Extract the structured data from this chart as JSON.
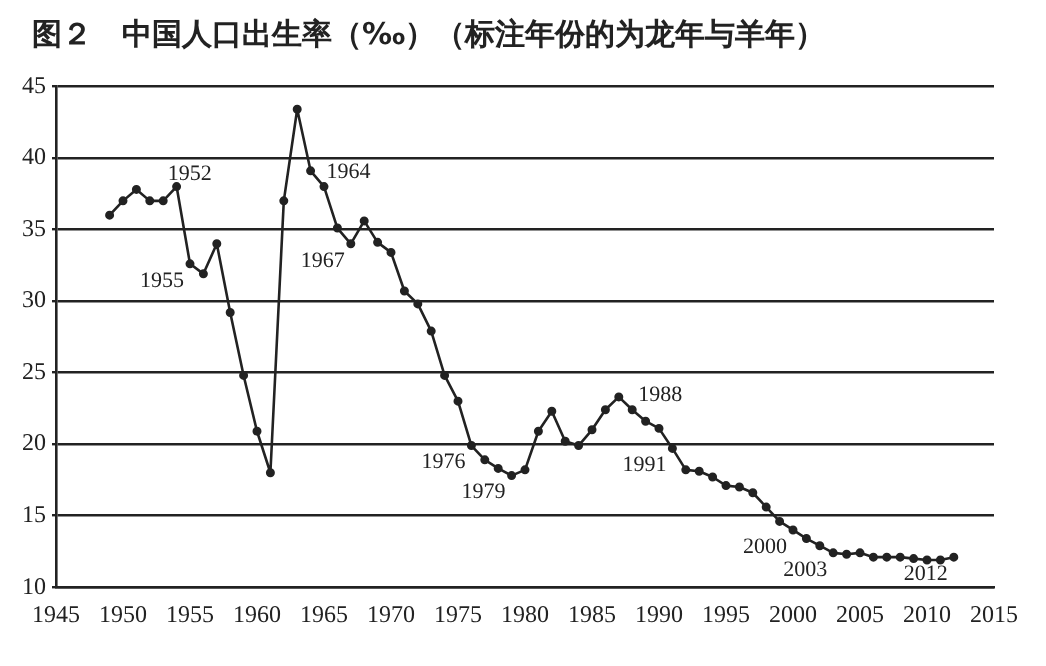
{
  "chart_data": {
    "type": "line",
    "title": "图２　中国人口出生率（‰）（标注年份的为龙年与羊年）",
    "x": [
      1949,
      1950,
      1951,
      1952,
      1953,
      1954,
      1955,
      1956,
      1957,
      1958,
      1959,
      1960,
      1961,
      1962,
      1963,
      1964,
      1965,
      1966,
      1967,
      1968,
      1969,
      1970,
      1971,
      1972,
      1973,
      1974,
      1975,
      1976,
      1977,
      1978,
      1979,
      1980,
      1981,
      1982,
      1983,
      1984,
      1985,
      1986,
      1987,
      1988,
      1989,
      1990,
      1991,
      1992,
      1993,
      1994,
      1995,
      1996,
      1997,
      1998,
      1999,
      2000,
      2001,
      2002,
      2003,
      2004,
      2005,
      2006,
      2007,
      2008,
      2009,
      2010,
      2011,
      2012
    ],
    "series": [
      {
        "color": "#222222",
        "values": [
          36,
          37,
          37.8,
          37,
          37,
          38,
          32.6,
          31.9,
          34,
          29.2,
          24.8,
          20.9,
          18,
          37,
          43.4,
          39.1,
          38,
          35.1,
          34,
          35.6,
          34.1,
          33.4,
          30.7,
          29.8,
          27.9,
          24.8,
          23,
          19.9,
          18.9,
          18.3,
          17.8,
          18.2,
          20.9,
          22.3,
          20.2,
          19.9,
          21,
          22.4,
          23.3,
          22.4,
          21.6,
          21.1,
          19.7,
          18.2,
          18.1,
          17.7,
          17.1,
          17,
          16.6,
          15.6,
          14.6,
          14,
          13.4,
          12.9,
          12.4,
          12.3,
          12.4,
          12.1,
          12.1,
          12.1,
          12,
          11.9,
          11.9,
          12.1
        ]
      }
    ],
    "xlim": [
      1945,
      2015
    ],
    "xticks": [
      1945,
      1950,
      1955,
      1960,
      1965,
      1970,
      1975,
      1980,
      1985,
      1990,
      1995,
      2000,
      2005,
      2010,
      2015
    ],
    "ylim": [
      10,
      45
    ],
    "yticks": [
      10,
      15,
      20,
      25,
      30,
      35,
      40,
      45
    ],
    "grid": "y",
    "marker": "circle",
    "line_style": "solid",
    "legend": false,
    "annotations": [
      {
        "text": "1952",
        "x": 1952,
        "y": 37
      },
      {
        "text": "1955",
        "x": 1955,
        "y": 32.6
      },
      {
        "text": "1964",
        "x": 1964,
        "y": 39.1
      },
      {
        "text": "1967",
        "x": 1967,
        "y": 34
      },
      {
        "text": "1976",
        "x": 1976,
        "y": 19.9
      },
      {
        "text": "1979",
        "x": 1979,
        "y": 17.8
      },
      {
        "text": "1988",
        "x": 1988,
        "y": 22.4
      },
      {
        "text": "1991",
        "x": 1991,
        "y": 19.7
      },
      {
        "text": "2000",
        "x": 2000,
        "y": 14
      },
      {
        "text": "2003",
        "x": 2003,
        "y": 12.4
      },
      {
        "text": "2012",
        "x": 2012,
        "y": 12.1
      }
    ]
  }
}
